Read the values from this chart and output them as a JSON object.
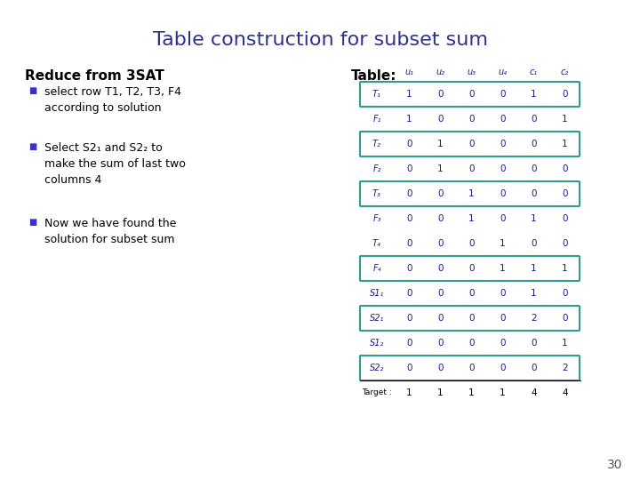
{
  "title": "Table construction for subset sum",
  "title_color": "#2E3192",
  "title_fontsize": 16,
  "left_heading": "Reduce from 3SAT",
  "right_heading": "Table:",
  "heading_color": "#000000",
  "heading_fontsize": 11,
  "bullet_color": "#3333CC",
  "bullet_text": [
    "select row T1, T2, T3, F4\naccording to solution",
    "Select S2₁ and S2₂ to\nmake the sum of last two\ncolumns 4",
    "Now we have found the\nsolution for subset sum"
  ],
  "col_headers": [
    "u₁",
    "u₂",
    "u₃",
    "u₄",
    "c₁",
    "c₂"
  ],
  "row_labels": [
    "T₁",
    "F₁",
    "T₂",
    "F₂",
    "T₃",
    "F₃",
    "T₄",
    "F₄",
    "S1₁",
    "S2₁",
    "S1₂",
    "S2₂"
  ],
  "table_data": [
    [
      1,
      0,
      0,
      0,
      1,
      0
    ],
    [
      1,
      0,
      0,
      0,
      0,
      1
    ],
    [
      0,
      1,
      0,
      0,
      0,
      1
    ],
    [
      0,
      1,
      0,
      0,
      0,
      0
    ],
    [
      0,
      0,
      1,
      0,
      0,
      0
    ],
    [
      0,
      0,
      1,
      0,
      1,
      0
    ],
    [
      0,
      0,
      0,
      1,
      0,
      0
    ],
    [
      0,
      0,
      0,
      1,
      1,
      1
    ],
    [
      0,
      0,
      0,
      0,
      1,
      0
    ],
    [
      0,
      0,
      0,
      0,
      2,
      0
    ],
    [
      0,
      0,
      0,
      0,
      0,
      1
    ],
    [
      0,
      0,
      0,
      0,
      0,
      2
    ]
  ],
  "target_row": [
    "Target :",
    1,
    1,
    1,
    1,
    4,
    4
  ],
  "highlighted_rows": [
    0,
    2,
    4,
    7,
    9,
    11
  ],
  "highlight_color": "#2E9B8F",
  "table_text_color": "#1a1a8c",
  "background_color": "#FFFFFF",
  "page_number": "30"
}
